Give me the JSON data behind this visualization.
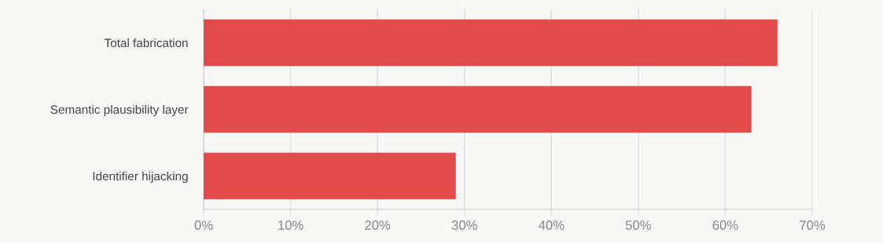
{
  "chart_data": {
    "type": "bar",
    "orientation": "horizontal",
    "categories": [
      "Total fabrication",
      "Semantic plausibility layer",
      "Identifier hijacking"
    ],
    "values": [
      66,
      63,
      29
    ],
    "color": "#e34a4b",
    "xlim": [
      0,
      70
    ],
    "xticks": [
      {
        "value": 0,
        "label": "0%"
      },
      {
        "value": 10,
        "label": "10%"
      },
      {
        "value": 20,
        "label": "20%"
      },
      {
        "value": 30,
        "label": "30%"
      },
      {
        "value": 40,
        "label": "40%"
      },
      {
        "value": 50,
        "label": "50%"
      },
      {
        "value": 60,
        "label": "60%"
      },
      {
        "value": 70,
        "label": "70%"
      }
    ],
    "grid": "x",
    "legend": false
  }
}
